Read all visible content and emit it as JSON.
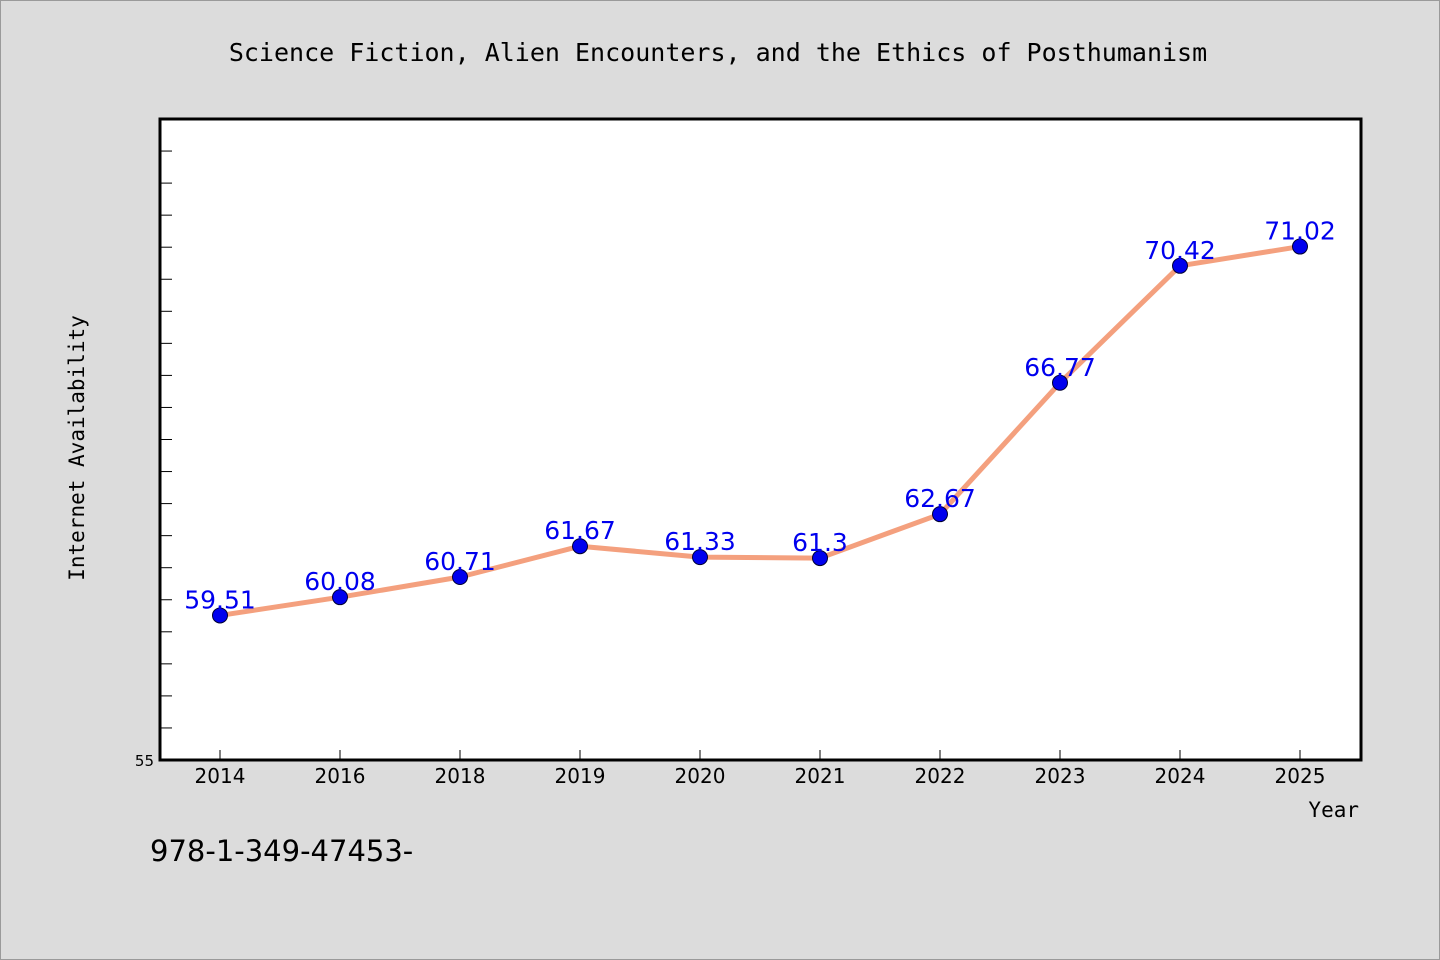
{
  "chart_data": {
    "type": "line",
    "title": "Science Fiction, Alien Encounters, and the Ethics of Posthumanism",
    "xlabel": "Year",
    "ylabel": "Internet Availability",
    "categories": [
      "2014",
      "2016",
      "2018",
      "2019",
      "2020",
      "2021",
      "2022",
      "2023",
      "2024",
      "2025"
    ],
    "series": [
      {
        "values": [
          59.51,
          60.08,
          60.71,
          61.67,
          61.33,
          61.3,
          62.67,
          66.77,
          70.42,
          71.02
        ],
        "labels": [
          "59.51",
          "60.08",
          "60.71",
          "61.67",
          "61.33",
          "61.3",
          "62.67",
          "66.77",
          "70.42",
          "71.02"
        ]
      }
    ],
    "ylim": [
      55,
      75
    ],
    "y_tick_labels": [
      "55"
    ],
    "grid": false,
    "legend": "none",
    "line_color": "#f4a07e",
    "marker_color": "#0000ee"
  },
  "footer": {
    "code": "978-1-349-47453-"
  }
}
